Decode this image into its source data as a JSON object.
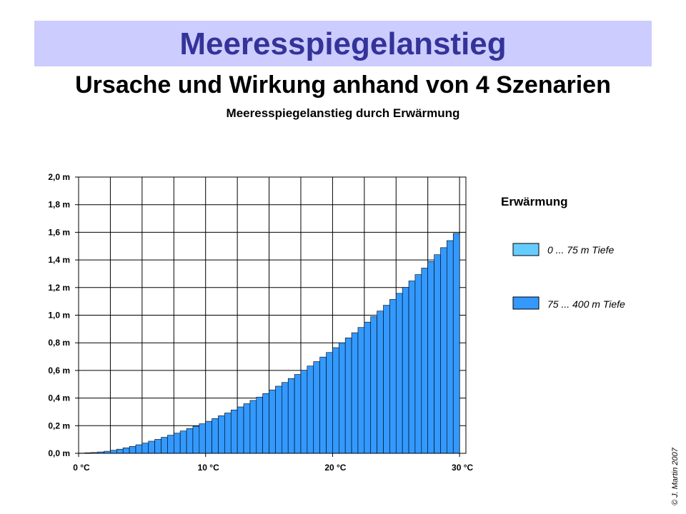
{
  "slide": {
    "title": "Meeresspiegelanstieg",
    "subtitle": "Ursache und Wirkung anhand von 4 Szenarien",
    "copyright": "© J. Martin 2007"
  },
  "chart_data": {
    "type": "bar",
    "title": "Meeresspiegelanstieg durch Erwärmung",
    "xlabel": "",
    "ylabel": "",
    "xlim": [
      0,
      30.5
    ],
    "ylim": [
      0,
      2.0
    ],
    "grid": true,
    "x_ticks": [
      {
        "value": 0,
        "label": "0 °C"
      },
      {
        "value": 10,
        "label": "10 °C"
      },
      {
        "value": 20,
        "label": "20 °C"
      },
      {
        "value": 30,
        "label": "30 °C"
      }
    ],
    "y_ticks": [
      {
        "value": 0.0,
        "label": "0,0 m"
      },
      {
        "value": 0.2,
        "label": "0,2 m"
      },
      {
        "value": 0.4,
        "label": "0,4 m"
      },
      {
        "value": 0.6,
        "label": "0,6 m"
      },
      {
        "value": 0.8,
        "label": "0,8 m"
      },
      {
        "value": 1.0,
        "label": "1,0 m"
      },
      {
        "value": 1.2,
        "label": "1,2 m"
      },
      {
        "value": 1.4,
        "label": "1,4 m"
      },
      {
        "value": 1.6,
        "label": "1,6 m"
      },
      {
        "value": 1.8,
        "label": "1,8 m"
      },
      {
        "value": 2.0,
        "label": "2,0 m"
      }
    ],
    "legend": {
      "title": "Erwärmung",
      "position": "right",
      "entries": [
        {
          "label": "0 ... 75 m Tiefe",
          "color": "#66ccff"
        },
        {
          "label": "75 ... 400 m Tiefe",
          "color": "#3399ff"
        }
      ]
    },
    "bar_color": "#3399ff",
    "categories": [
      0.5,
      1,
      1.5,
      2,
      2.5,
      3,
      3.5,
      4,
      4.5,
      5,
      5.5,
      6,
      6.5,
      7,
      7.5,
      8,
      8.5,
      9,
      9.5,
      10,
      10.5,
      11,
      11.5,
      12,
      12.5,
      13,
      13.5,
      14,
      14.5,
      15,
      15.5,
      16,
      16.5,
      17,
      17.5,
      18,
      18.5,
      19,
      19.5,
      20,
      20.5,
      21,
      21.5,
      22,
      22.5,
      23,
      23.5,
      24,
      24.5,
      25,
      25.5,
      26,
      26.5,
      27,
      27.5,
      28,
      28.5,
      29,
      29.5,
      30
    ],
    "series": [
      {
        "values": [
          0.002,
          0.004,
          0.006,
          0.01,
          0.015,
          0.022,
          0.03,
          0.04,
          0.05,
          0.062,
          0.074,
          0.088,
          0.101,
          0.116,
          0.131,
          0.146,
          0.162,
          0.179,
          0.196,
          0.214,
          0.232,
          0.252,
          0.272,
          0.292,
          0.314,
          0.336,
          0.359,
          0.383,
          0.407,
          0.433,
          0.459,
          0.486,
          0.513,
          0.542,
          0.571,
          0.601,
          0.632,
          0.664,
          0.697,
          0.73,
          0.765,
          0.8,
          0.836,
          0.873,
          0.911,
          0.95,
          0.99,
          1.03,
          1.072,
          1.114,
          1.158,
          1.202,
          1.248,
          1.294,
          1.341,
          1.389,
          1.438,
          1.489,
          1.54,
          1.592
        ]
      }
    ]
  }
}
